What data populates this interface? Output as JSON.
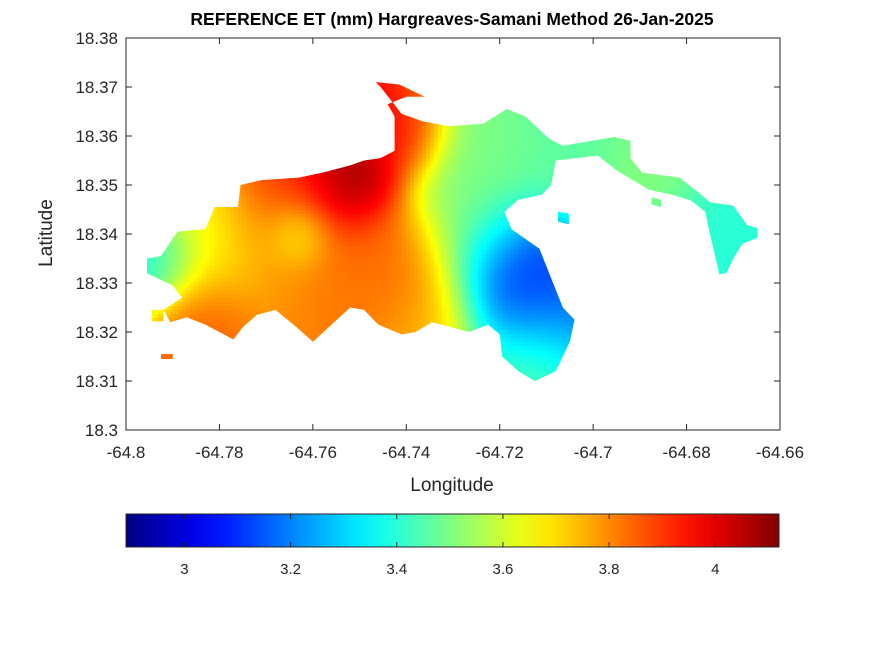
{
  "chart_data": {
    "type": "heatmap",
    "title": "REFERENCE ET (mm) Hargreaves-Samani Method  26-Jan-2025",
    "xlabel": "Longitude",
    "ylabel": "Latitude",
    "xlim": [
      -64.8,
      -64.66
    ],
    "ylim": [
      18.3,
      18.38
    ],
    "x_ticks": [
      "-64.8",
      "-64.78",
      "-64.76",
      "-64.74",
      "-64.72",
      "-64.7",
      "-64.68",
      "-64.66"
    ],
    "y_ticks": [
      "18.3",
      "18.31",
      "18.32",
      "18.33",
      "18.34",
      "18.35",
      "18.36",
      "18.37",
      "18.38"
    ],
    "colorbar": {
      "orientation": "horizontal",
      "location": "below",
      "colormap": "jet",
      "range": [
        2.89,
        4.12
      ],
      "ticks": [
        "3",
        "3.2",
        "3.4",
        "3.6",
        "3.8",
        "4"
      ]
    },
    "grid": false,
    "field_hotspots": [
      {
        "lon": -64.753,
        "lat": 18.35,
        "value": 4.12,
        "spread": 0.0065
      },
      {
        "lon": -64.741,
        "lat": 18.361,
        "value": 3.98,
        "spread": 0.006
      },
      {
        "lon": -64.765,
        "lat": 18.35,
        "value": 3.92,
        "spread": 0.007
      },
      {
        "lon": -64.77,
        "lat": 18.338,
        "value": 3.78,
        "spread": 0.01
      },
      {
        "lon": -64.752,
        "lat": 18.331,
        "value": 3.82,
        "spread": 0.009
      },
      {
        "lon": -64.742,
        "lat": 18.333,
        "value": 3.86,
        "spread": 0.008
      },
      {
        "lon": -64.783,
        "lat": 18.323,
        "value": 3.86,
        "spread": 0.006
      },
      {
        "lon": -64.784,
        "lat": 18.338,
        "value": 3.62,
        "spread": 0.008
      },
      {
        "lon": -64.794,
        "lat": 18.335,
        "value": 3.33,
        "spread": 0.0055
      },
      {
        "lon": -64.763,
        "lat": 18.34,
        "value": 3.58,
        "spread": 0.004
      },
      {
        "lon": -64.726,
        "lat": 18.341,
        "value": 3.52,
        "spread": 0.008
      },
      {
        "lon": -64.724,
        "lat": 18.357,
        "value": 3.5,
        "spread": 0.009
      },
      {
        "lon": -64.717,
        "lat": 18.332,
        "value": 3.02,
        "spread": 0.008
      },
      {
        "lon": -64.711,
        "lat": 18.324,
        "value": 3.2,
        "spread": 0.009
      },
      {
        "lon": -64.714,
        "lat": 18.313,
        "value": 3.5,
        "spread": 0.007
      },
      {
        "lon": -64.705,
        "lat": 18.357,
        "value": 3.46,
        "spread": 0.009
      },
      {
        "lon": -64.688,
        "lat": 18.352,
        "value": 3.52,
        "spread": 0.007
      },
      {
        "lon": -64.675,
        "lat": 18.339,
        "value": 3.4,
        "spread": 0.008
      },
      {
        "lon": -64.735,
        "lat": 18.322,
        "value": 3.74,
        "spread": 0.008
      }
    ],
    "field_base_value": 3.6,
    "land_outline": [
      [
        -64.7925,
        18.3355
      ],
      [
        -64.789,
        18.3405
      ],
      [
        -64.783,
        18.341
      ],
      [
        -64.781,
        18.3455
      ],
      [
        -64.776,
        18.3455
      ],
      [
        -64.7755,
        18.35
      ],
      [
        -64.771,
        18.351
      ],
      [
        -64.763,
        18.3515
      ],
      [
        -64.758,
        18.3525
      ],
      [
        -64.752,
        18.354
      ],
      [
        -64.749,
        18.355
      ],
      [
        -64.7455,
        18.3555
      ],
      [
        -64.7425,
        18.357
      ],
      [
        -64.7425,
        18.364
      ],
      [
        -64.744,
        18.3665
      ],
      [
        -64.74,
        18.368
      ],
      [
        -64.736,
        18.368
      ],
      [
        -64.7415,
        18.3705
      ],
      [
        -64.7465,
        18.371
      ],
      [
        -64.7455,
        18.37
      ],
      [
        -64.741,
        18.3645
      ],
      [
        -64.7365,
        18.363
      ],
      [
        -64.731,
        18.362
      ],
      [
        -64.7235,
        18.3625
      ],
      [
        -64.7185,
        18.3655
      ],
      [
        -64.7145,
        18.364
      ],
      [
        -64.7095,
        18.3595
      ],
      [
        -64.7065,
        18.358
      ],
      [
        -64.6955,
        18.3598
      ],
      [
        -64.692,
        18.359
      ],
      [
        -64.692,
        18.3555
      ],
      [
        -64.6895,
        18.3525
      ],
      [
        -64.6815,
        18.3515
      ],
      [
        -64.6775,
        18.3485
      ],
      [
        -64.675,
        18.3465
      ],
      [
        -64.67,
        18.3458
      ],
      [
        -64.667,
        18.3418
      ],
      [
        -64.6648,
        18.3412
      ],
      [
        -64.6648,
        18.3392
      ],
      [
        -64.668,
        18.338
      ],
      [
        -64.67,
        18.335
      ],
      [
        -64.6715,
        18.332
      ],
      [
        -64.673,
        18.3318
      ],
      [
        -64.674,
        18.336
      ],
      [
        -64.675,
        18.34
      ],
      [
        -64.676,
        18.3445
      ],
      [
        -64.679,
        18.3468
      ],
      [
        -64.683,
        18.348
      ],
      [
        -64.688,
        18.349
      ],
      [
        -64.695,
        18.353
      ],
      [
        -64.699,
        18.356
      ],
      [
        -64.708,
        18.355
      ],
      [
        -64.709,
        18.35
      ],
      [
        -64.711,
        18.348
      ],
      [
        -64.716,
        18.347
      ],
      [
        -64.719,
        18.3445
      ],
      [
        -64.7175,
        18.341
      ],
      [
        -64.7115,
        18.337
      ],
      [
        -64.709,
        18.331
      ],
      [
        -64.7065,
        18.325
      ],
      [
        -64.704,
        18.3225
      ],
      [
        -64.705,
        18.318
      ],
      [
        -64.708,
        18.312
      ],
      [
        -64.7125,
        18.31
      ],
      [
        -64.716,
        18.312
      ],
      [
        -64.7195,
        18.315
      ],
      [
        -64.72,
        18.3195
      ],
      [
        -64.7225,
        18.3215
      ],
      [
        -64.7265,
        18.32
      ],
      [
        -64.7305,
        18.321
      ],
      [
        -64.7345,
        18.322
      ],
      [
        -64.738,
        18.32
      ],
      [
        -64.741,
        18.3195
      ],
      [
        -64.746,
        18.3215
      ],
      [
        -64.749,
        18.3245
      ],
      [
        -64.752,
        18.325
      ],
      [
        -64.756,
        18.3215
      ],
      [
        -64.76,
        18.318
      ],
      [
        -64.7635,
        18.321
      ],
      [
        -64.768,
        18.3245
      ],
      [
        -64.772,
        18.3235
      ],
      [
        -64.775,
        18.321
      ],
      [
        -64.777,
        18.3185
      ],
      [
        -64.783,
        18.3215
      ],
      [
        -64.787,
        18.323
      ],
      [
        -64.7905,
        18.322
      ],
      [
        -64.792,
        18.3245
      ],
      [
        -64.788,
        18.327
      ],
      [
        -64.79,
        18.3295
      ],
      [
        -64.7955,
        18.332
      ],
      [
        -64.7955,
        18.335
      ]
    ],
    "islets": [
      [
        [
          -64.6875,
          18.3475
        ],
        [
          -64.6855,
          18.347
        ],
        [
          -64.6855,
          18.3455
        ],
        [
          -64.6875,
          18.346
        ]
      ],
      [
        [
          -64.7075,
          18.3445
        ],
        [
          -64.7052,
          18.3442
        ],
        [
          -64.7052,
          18.342
        ],
        [
          -64.7075,
          18.3425
        ]
      ],
      [
        [
          -64.7925,
          18.3155
        ],
        [
          -64.79,
          18.3155
        ],
        [
          -64.79,
          18.3145
        ],
        [
          -64.7925,
          18.3145
        ]
      ],
      [
        [
          -64.7945,
          18.3245
        ],
        [
          -64.792,
          18.3245
        ],
        [
          -64.792,
          18.3222
        ],
        [
          -64.7945,
          18.3222
        ]
      ]
    ]
  }
}
